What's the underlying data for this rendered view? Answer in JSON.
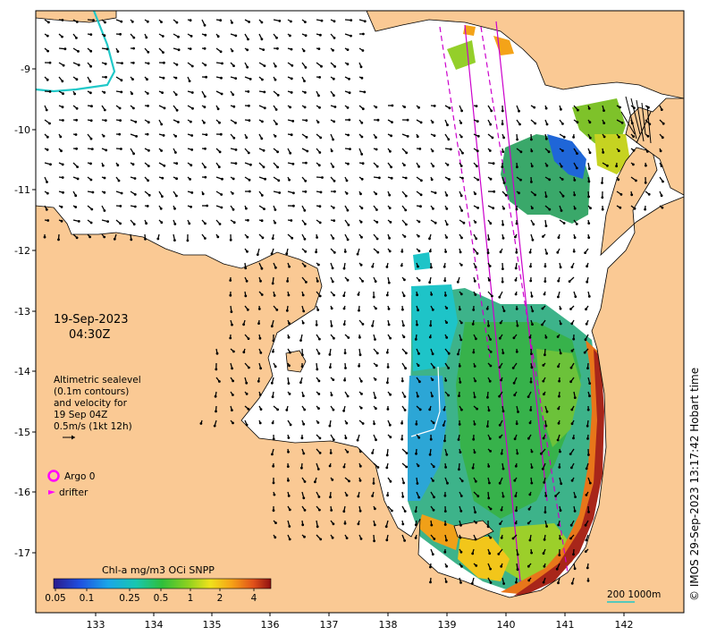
{
  "map": {
    "date": "19-Sep-2023",
    "time": "04:30Z",
    "altimetry_legend": [
      "Altimetric sealevel",
      "(0.1m contours)",
      "and velocity for",
      "19 Sep 04Z",
      "0.5m/s (1kt 12h)"
    ],
    "argo_label": "Argo 0",
    "drifter_label": "drifter",
    "colorbar_title": "Chl-a mg/m3 OCi SNPP",
    "colorbar_ticks": [
      "0.05",
      "0.1",
      "0.25",
      "0.5",
      "1",
      "2",
      "4"
    ],
    "scale_bar_label": "200  1000m",
    "credit": "© IMOS 29-Sep-2023 13:17:42 Hobart time",
    "lon_ticks": [
      "133",
      "134",
      "135",
      "136",
      "137",
      "138",
      "139",
      "140",
      "141",
      "142"
    ],
    "lat_ticks": [
      "-9",
      "-10",
      "-11",
      "-12",
      "-13",
      "-14",
      "-15",
      "-16",
      "-17"
    ],
    "colors": {
      "land": "#fac994",
      "ocean": "#ffffff",
      "argo": "#ff00ff",
      "altimetry_track": "#cc00cc",
      "boundary": "#20c8c8"
    }
  }
}
